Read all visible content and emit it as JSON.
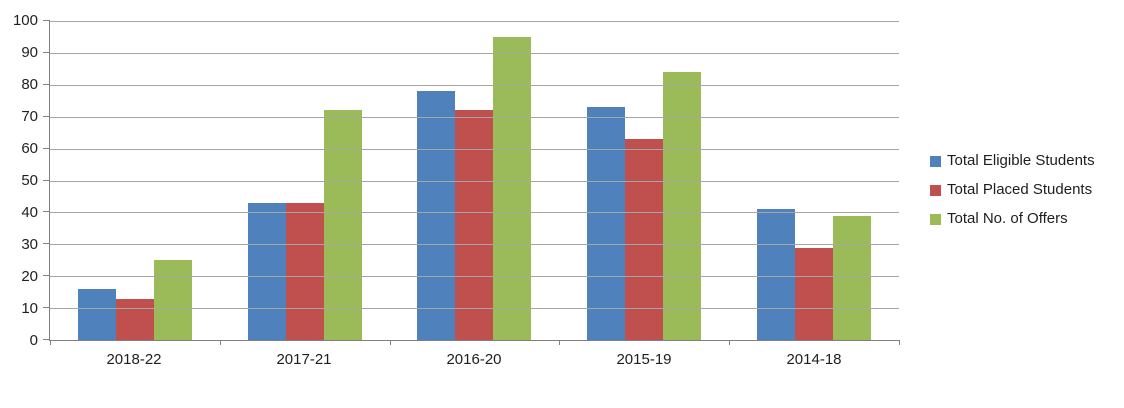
{
  "chart_data": {
    "type": "bar",
    "title": "",
    "xlabel": "",
    "ylabel": "",
    "categories": [
      "2018-22",
      "2017-21",
      "2016-20",
      "2015-19",
      "2014-18"
    ],
    "series": [
      {
        "name": "Total Eligible Students",
        "color": "#4F81BD",
        "values": [
          16,
          43,
          78,
          73,
          41
        ]
      },
      {
        "name": "Total Placed Students",
        "color": "#C0504D",
        "values": [
          13,
          43,
          72,
          63,
          29
        ]
      },
      {
        "name": "Total No. of Offers",
        "color": "#9BBB59",
        "values": [
          25,
          72,
          95,
          84,
          39
        ]
      }
    ],
    "ylim": [
      0,
      100
    ],
    "yticks": [
      0,
      10,
      20,
      30,
      40,
      50,
      60,
      70,
      80,
      90,
      100
    ],
    "grid": true,
    "legend_position": "right"
  },
  "colors": {
    "gridline": "#A6A6A6",
    "axis": "#808080",
    "text": "#1E1E1E",
    "background": "#FFFFFF"
  }
}
